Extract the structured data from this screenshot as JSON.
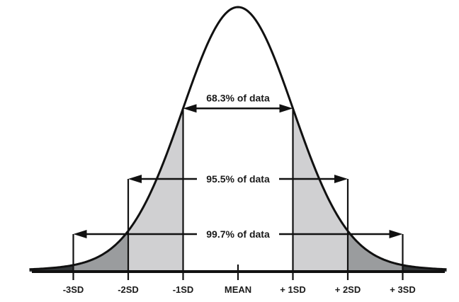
{
  "chart_data": {
    "type": "area",
    "distribution": "normal",
    "mean": 0,
    "sd": 1,
    "xlim": [
      -3.8,
      3.8
    ],
    "tick_values": [
      -3,
      -2,
      -1,
      0,
      1,
      2,
      3
    ],
    "tick_labels": [
      "-3SD",
      "-2SD",
      "-1SD",
      "MEAN",
      "+ 1SD",
      "+ 2SD",
      "+ 3SD"
    ],
    "annotations": [
      {
        "label": "68.3% of data",
        "from": -1,
        "to": 1
      },
      {
        "label": "95.5% of data",
        "from": -2,
        "to": 2
      },
      {
        "label": "99.7% of data",
        "from": -3,
        "to": 3
      }
    ],
    "colors": {
      "curve": "#111111",
      "band_1_2sd": "#d0d0d2",
      "band_2_3sd": "#9a9c9e",
      "tail_beyond_3sd": "#333638"
    }
  }
}
